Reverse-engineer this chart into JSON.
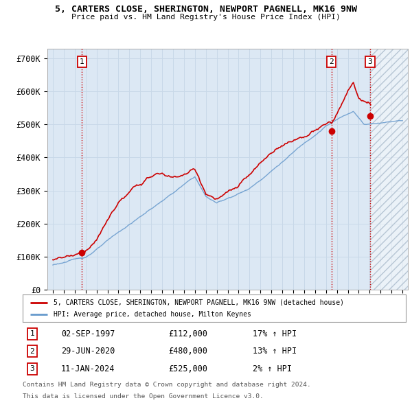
{
  "title1": "5, CARTERS CLOSE, SHERINGTON, NEWPORT PAGNELL, MK16 9NW",
  "title2": "Price paid vs. HM Land Registry's House Price Index (HPI)",
  "ylim": [
    0,
    730000
  ],
  "yticks": [
    0,
    100000,
    200000,
    300000,
    400000,
    500000,
    600000,
    700000
  ],
  "ytick_labels": [
    "£0",
    "£100K",
    "£200K",
    "£300K",
    "£400K",
    "£500K",
    "£600K",
    "£700K"
  ],
  "hpi_color": "#6699cc",
  "price_color": "#cc0000",
  "dot_color": "#cc0000",
  "dotted_color": "#cc0000",
  "grid_color": "#c8d8e8",
  "plot_bg": "#dce8f4",
  "legend_label_price": "5, CARTERS CLOSE, SHERINGTON, NEWPORT PAGNELL, MK16 9NW (detached house)",
  "legend_label_hpi": "HPI: Average price, detached house, Milton Keynes",
  "transactions": [
    {
      "num": 1,
      "date": "02-SEP-1997",
      "price": 112000,
      "hpi_pct": "17% ↑ HPI",
      "year": 1997.67
    },
    {
      "num": 2,
      "date": "29-JUN-2020",
      "price": 480000,
      "hpi_pct": "13% ↑ HPI",
      "year": 2020.5
    },
    {
      "num": 3,
      "date": "11-JAN-2024",
      "price": 525000,
      "hpi_pct": "2% ↑ HPI",
      "year": 2024.03
    }
  ],
  "footer1": "Contains HM Land Registry data © Crown copyright and database right 2024.",
  "footer2": "This data is licensed under the Open Government Licence v3.0.",
  "future_start": 2024.03,
  "xlim_start": 1994.5,
  "xlim_end": 2027.5
}
